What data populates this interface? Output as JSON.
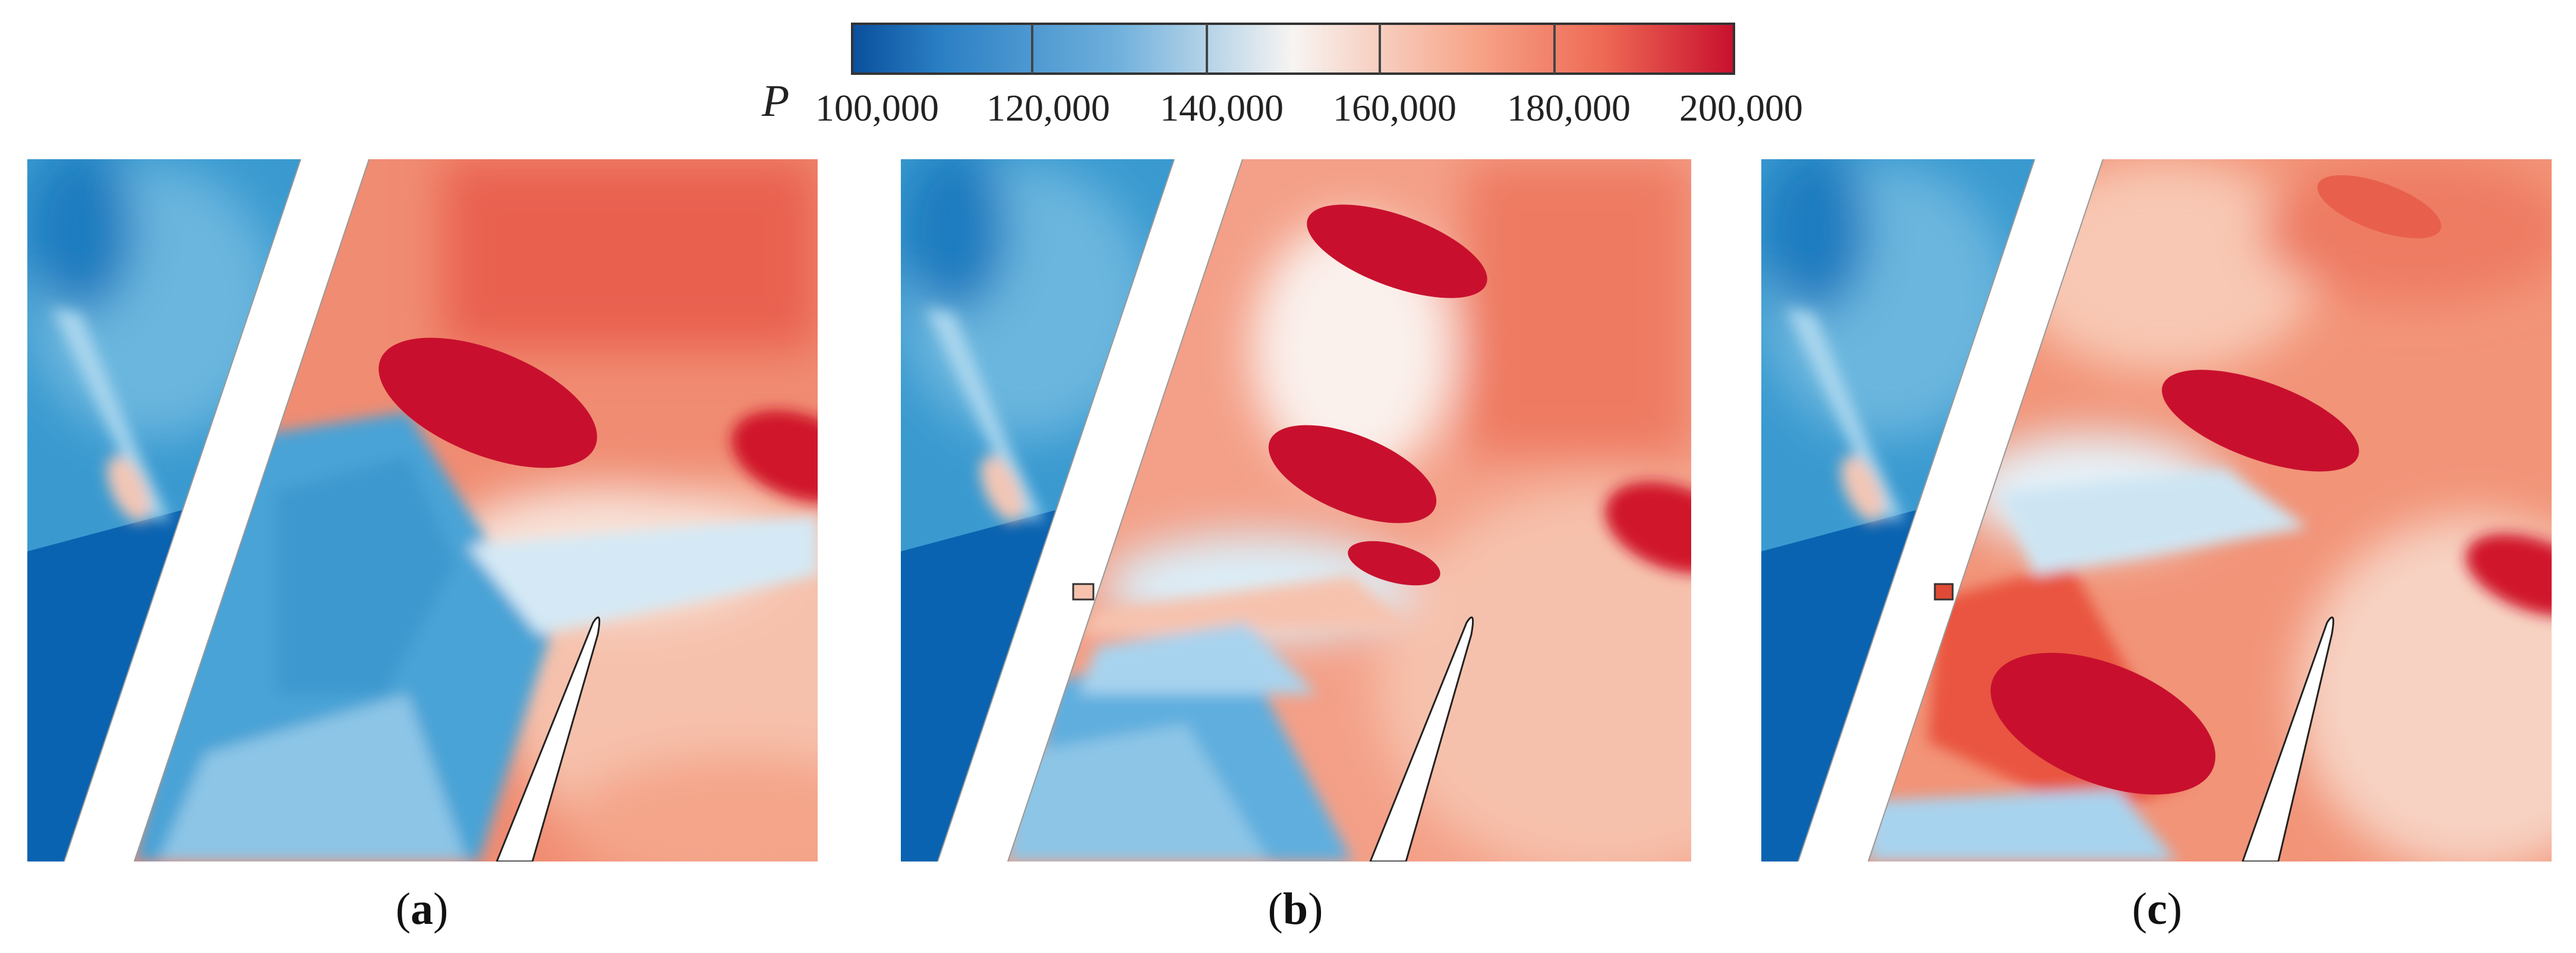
{
  "colorbar": {
    "variable": "P",
    "tick_labels": [
      "100,000",
      "120,000",
      "140,000",
      "160,000",
      "180,000",
      "200,000"
    ],
    "min": 100000,
    "max": 200000,
    "colors": {
      "low": "#0a5fae",
      "mid": "#f7f7f7",
      "high": "#d0142a"
    }
  },
  "panels": [
    {
      "id": "a",
      "caption_open": "(",
      "caption_letter": "a",
      "caption_close": ")"
    },
    {
      "id": "b",
      "caption_open": "(",
      "caption_letter": "b",
      "caption_close": ")"
    },
    {
      "id": "c",
      "caption_open": "(",
      "caption_letter": "c",
      "caption_close": ")"
    }
  ]
}
